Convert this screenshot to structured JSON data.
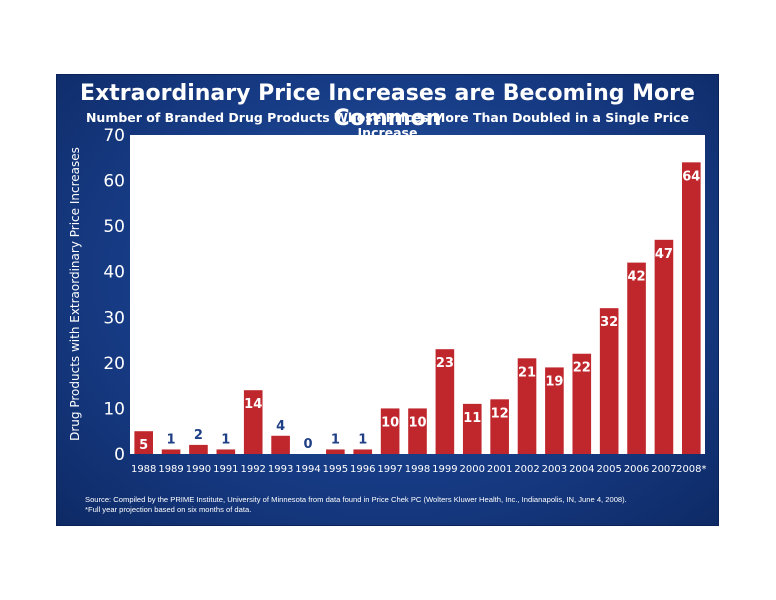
{
  "chart_data": {
    "type": "bar",
    "title": "Extraordinary Price Increases are Becoming More Common",
    "subtitle": "Number of Branded Drug Products Whose Prices More Than Doubled in a Single Price Increase",
    "xlabel": "",
    "ylabel": "Drug Products with Extraordinary Price Increases",
    "ylim": [
      0,
      70
    ],
    "yticks": [
      0,
      10,
      20,
      30,
      40,
      50,
      60,
      70
    ],
    "categories": [
      "1988",
      "1989",
      "1990",
      "1991",
      "1992",
      "1993",
      "1994",
      "1995",
      "1996",
      "1997",
      "1998",
      "1999",
      "2000",
      "2001",
      "2002",
      "2003",
      "2004",
      "2005",
      "2006",
      "2007",
      "2008*"
    ],
    "values": [
      5,
      1,
      2,
      1,
      14,
      4,
      0,
      1,
      1,
      10,
      10,
      23,
      11,
      12,
      21,
      19,
      22,
      32,
      42,
      47,
      64
    ],
    "bar_color": "#c0272d",
    "label_color_on_bar": "#ffffff",
    "label_color_off_bar": "#1f3f86",
    "grid": false
  },
  "source": {
    "line1": "Source:  Compiled by the PRIME Institute, University of Minnesota from data found in Price Chek PC (Wolters Kluwer Health, Inc., Indianapolis, IN, June 4, 2008).",
    "line2": "*Full year projection based on six months of data."
  }
}
